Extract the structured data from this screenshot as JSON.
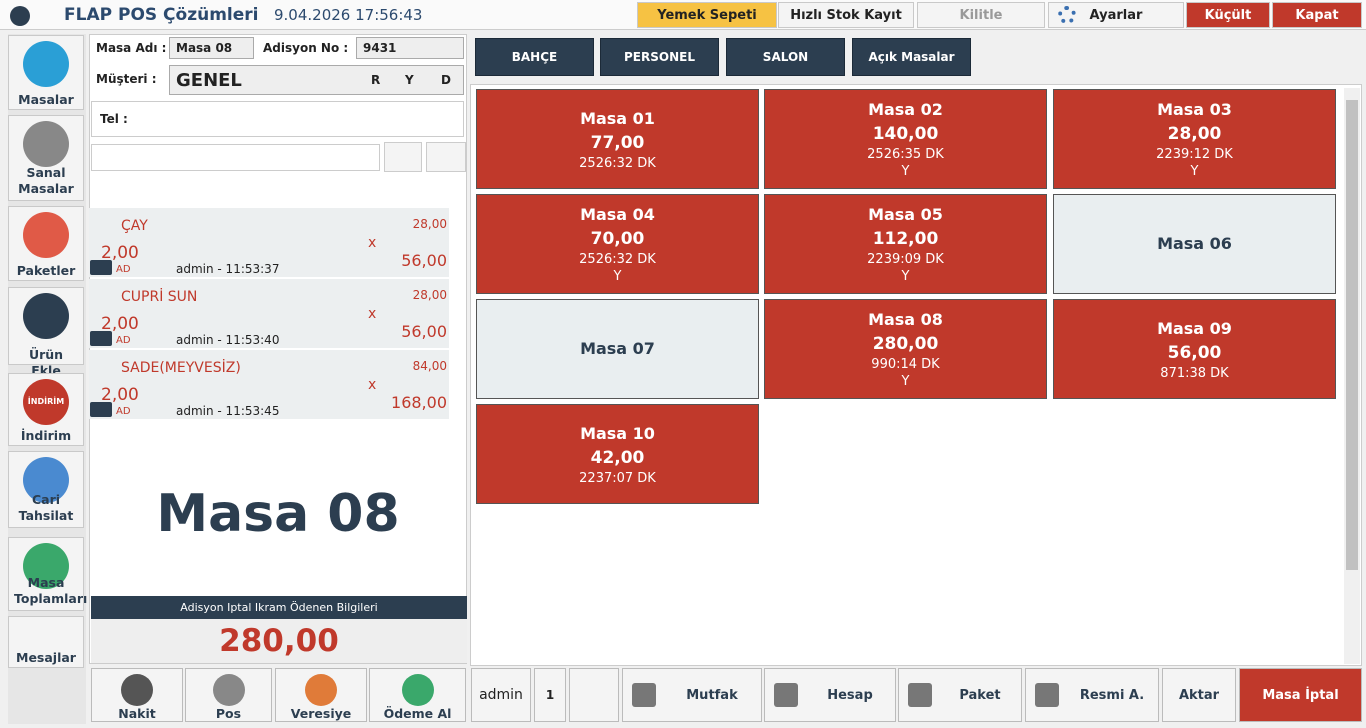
{
  "header": {
    "app_title": "FLAP POS Çözümleri",
    "datetime": "9.04.2026 17:56:43",
    "buttons": [
      "Yemek Sepeti",
      "Hızlı Stok Kayıt",
      "Kilitle",
      "Ayarlar",
      "Küçült",
      "Kapat"
    ]
  },
  "sidebar": {
    "items": [
      "Masalar",
      "Sanal Masalar",
      "Paketler",
      "Ürün Ekle",
      "İndirim",
      "Cari Tahsilat",
      "Masa Toplamları",
      "Mesajlar"
    ],
    "discount_badge": "İNDİRİM"
  },
  "order": {
    "table_label": "Masa Adı :",
    "table_value": "Masa 08",
    "bill_label": "Adisyon No :",
    "bill_value": "9431",
    "customer_label": "Müşteri :",
    "customer_value": "GENEL",
    "flags": [
      "R",
      "Y",
      "D"
    ],
    "phone_label": "Tel :",
    "items": [
      {
        "name": "ÇAY",
        "price": "28,00",
        "qty": "2,00",
        "unit": "AD",
        "user": "admin - 11:53:37",
        "x": "x",
        "total": "56,00"
      },
      {
        "name": "CUPRİ SUN",
        "price": "28,00",
        "qty": "2,00",
        "unit": "AD",
        "user": "admin - 11:53:40",
        "x": "x",
        "total": "56,00"
      },
      {
        "name": "SADE(MEYVESİZ)",
        "price": "84,00",
        "qty": "2,00",
        "unit": "AD",
        "user": "admin - 11:53:45",
        "x": "x",
        "total": "168,00"
      }
    ],
    "big_label": "Masa 08",
    "summary_label": "Adisyon Iptal Ikram Ödenen Bilgileri",
    "summary_total": "280,00",
    "payments": [
      "Nakit",
      "Pos",
      "Veresiye",
      "Ödeme Al"
    ]
  },
  "tabs": [
    "BAHÇE",
    "PERSONEL",
    "SALON",
    "Açık Masalar"
  ],
  "tables": [
    {
      "name": "Masa 01",
      "amount": "77,00",
      "time": "2526:32 DK",
      "color": "#c0392b"
    },
    {
      "name": "Masa 02",
      "amount": "140,00",
      "time": "2526:35 DK",
      "flag": "Y",
      "color": "#c0392b"
    },
    {
      "name": "Masa 03",
      "amount": "28,00",
      "time": "2239:12 DK",
      "flag": "Y",
      "color": "#c0392b"
    },
    {
      "name": "Masa 04",
      "amount": "70,00",
      "time": "2526:32 DK",
      "flag": "Y",
      "color": "#c0392b"
    },
    {
      "name": "Masa 05",
      "amount": "112,00",
      "time": "2239:09 DK",
      "flag": "Y",
      "color": "#c0392b"
    },
    {
      "name": "Masa 06",
      "color": "#e9eef0"
    },
    {
      "name": "Masa 07",
      "color": "#e9eef0"
    },
    {
      "name": "Masa 08",
      "amount": "280,00",
      "time": "990:14 DK",
      "flag": "Y",
      "color": "#c0392b"
    },
    {
      "name": "Masa 09",
      "amount": "56,00",
      "time": "871:38 DK",
      "color": "#c0392b"
    },
    {
      "name": "Masa 10",
      "amount": "42,00",
      "time": "2237:07 DK",
      "color": "#c0392b"
    }
  ],
  "bottom": {
    "user": "admin",
    "count": "1",
    "buttons": [
      "Mutfak",
      "Hesap",
      "Paket",
      "Resmi A.",
      "Aktar",
      "Masa İptal"
    ]
  }
}
